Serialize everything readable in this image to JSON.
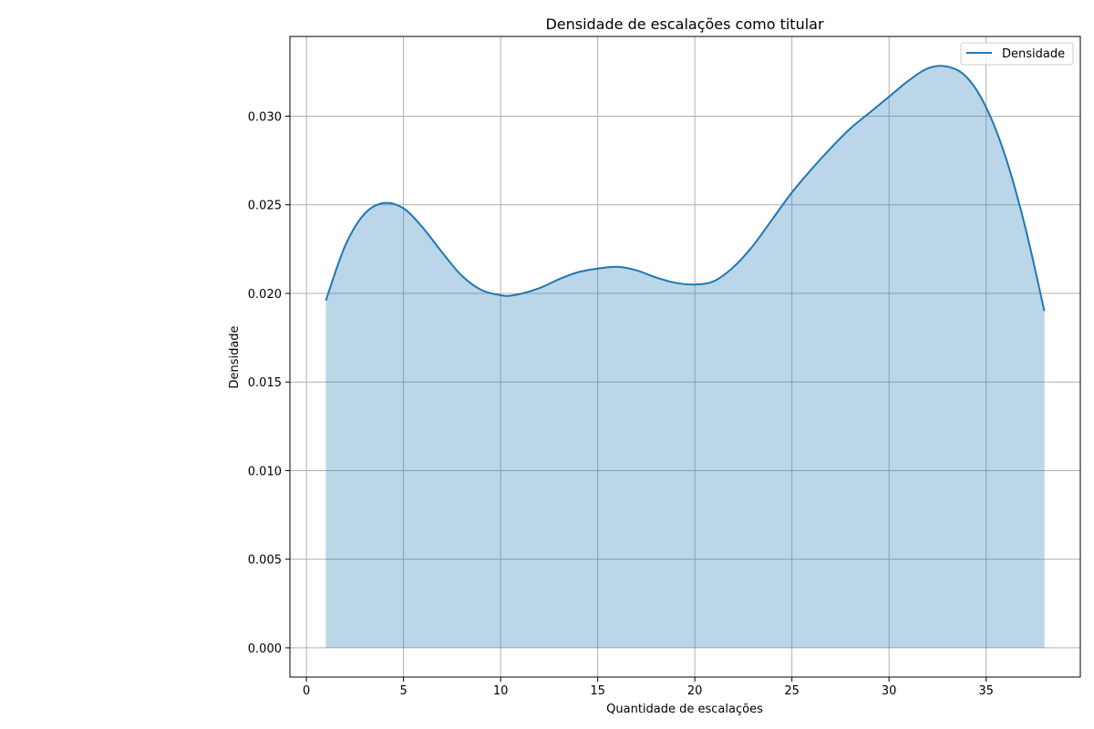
{
  "chart_data": {
    "type": "area",
    "title": "Densidade de escalações como titular",
    "xlabel": "Quantidade de escalações",
    "ylabel": "Densidade",
    "xlim": [
      -0.85,
      39.85
    ],
    "ylim": [
      -0.00165,
      0.0345
    ],
    "xticks": [
      0,
      5,
      10,
      15,
      20,
      25,
      30,
      35
    ],
    "yticks": [
      0.0,
      0.005,
      0.01,
      0.015,
      0.02,
      0.025,
      0.03
    ],
    "ytick_labels": [
      "0.000",
      "0.005",
      "0.010",
      "0.015",
      "0.020",
      "0.025",
      "0.030"
    ],
    "grid": true,
    "legend_position": "top-right",
    "series": [
      {
        "name": "Densidade",
        "color": "#1f77b4",
        "fill_color": "#1f77b4",
        "fill_opacity": 0.3,
        "x": [
          1,
          2,
          3,
          4,
          5,
          6,
          7,
          8,
          9,
          10,
          10.7,
          12,
          13,
          14,
          15,
          16,
          17,
          18,
          19,
          20,
          21,
          22,
          23,
          24,
          25,
          26,
          27,
          28,
          29,
          30,
          31,
          32,
          33,
          34,
          35,
          36,
          37,
          38
        ],
        "y": [
          0.0196,
          0.0227,
          0.0245,
          0.0251,
          0.0248,
          0.0237,
          0.0223,
          0.021,
          0.0202,
          0.0199,
          0.0199,
          0.0203,
          0.0208,
          0.0212,
          0.0214,
          0.0215,
          0.0213,
          0.0209,
          0.0206,
          0.0205,
          0.0207,
          0.0215,
          0.0227,
          0.0242,
          0.0257,
          0.027,
          0.0282,
          0.0293,
          0.0302,
          0.0311,
          0.032,
          0.0327,
          0.0328,
          0.0322,
          0.0305,
          0.0277,
          0.0238,
          0.019
        ]
      }
    ]
  }
}
